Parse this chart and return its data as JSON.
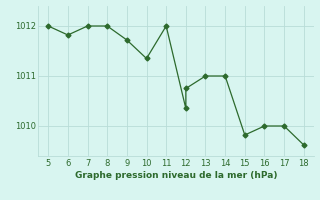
{
  "x": [
    5,
    6,
    7,
    8,
    9,
    10,
    11,
    12,
    12,
    13,
    14,
    15,
    16,
    17,
    18
  ],
  "y": [
    1012.0,
    1011.82,
    1012.0,
    1012.0,
    1011.72,
    1011.35,
    1012.0,
    1010.35,
    1010.75,
    1011.0,
    1011.0,
    1009.82,
    1010.0,
    1010.0,
    1009.62
  ],
  "line_color": "#2d6a2d",
  "marker": "D",
  "marker_size": 2.5,
  "bg_color": "#d8f5f0",
  "grid_color": "#b8ddd8",
  "xlabel": "Graphe pression niveau de la mer (hPa)",
  "xlim": [
    4.5,
    18.5
  ],
  "ylim": [
    1009.4,
    1012.4
  ],
  "yticks": [
    1010,
    1011,
    1012
  ],
  "xticks": [
    5,
    6,
    7,
    8,
    9,
    10,
    11,
    12,
    13,
    14,
    15,
    16,
    17,
    18
  ],
  "xlabel_fontsize": 6.5,
  "tick_fontsize": 6,
  "line_width": 0.9
}
